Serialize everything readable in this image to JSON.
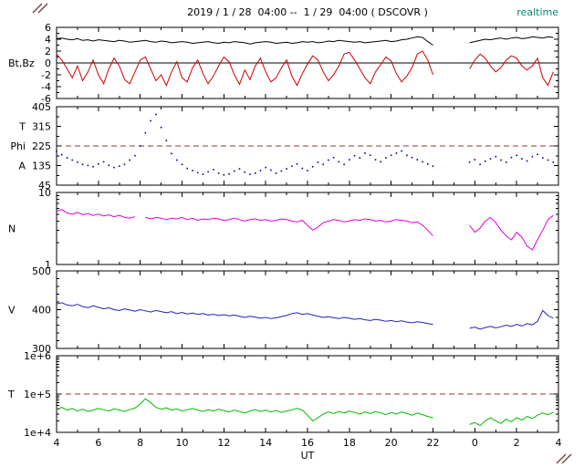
{
  "header": {
    "title": "2019 / 1 / 28  04:00 --  1 / 29  04:00 ( DSCOVR )",
    "realtime": "realtime",
    "realtime_color": "#008877"
  },
  "decorations": {
    "corner_marks_color": "#774444"
  },
  "chart_data": {
    "type": "line",
    "title": "2019 / 1 / 28  04:00 --  1 / 29  04:00 ( DSCOVR )",
    "xlabel": "UT",
    "x_start_hour": 4,
    "x_end_hour": 28,
    "t0": 4,
    "dt": 0.25,
    "x_ticks": [
      {
        "h": 4,
        "label": "4"
      },
      {
        "h": 6,
        "label": "6"
      },
      {
        "h": 8,
        "label": "8"
      },
      {
        "h": 10,
        "label": "10"
      },
      {
        "h": 12,
        "label": "12"
      },
      {
        "h": 14,
        "label": "14"
      },
      {
        "h": 16,
        "label": "16"
      },
      {
        "h": 18,
        "label": "18"
      },
      {
        "h": 20,
        "label": "20"
      },
      {
        "h": 22,
        "label": "22"
      },
      {
        "h": 24,
        "label": "0"
      },
      {
        "h": 26,
        "label": "2"
      },
      {
        "h": 28,
        "label": "4"
      }
    ],
    "panels": [
      {
        "name": "bt-bz",
        "label": "Bt,Bz",
        "label_at": 0,
        "scale": "linear",
        "ylim": [
          -6,
          6
        ],
        "yticks": [
          {
            "v": 6,
            "label": "6"
          },
          {
            "v": 4,
            "label": "4"
          },
          {
            "v": 2,
            "label": "2"
          },
          {
            "v": 0,
            "label": "0"
          },
          {
            "v": -2,
            "label": "-2"
          },
          {
            "v": -4,
            "label": "-4"
          },
          {
            "v": -6,
            "label": "-6"
          }
        ],
        "yminor": 1,
        "zero_line": true,
        "series": [
          {
            "name": "Bt",
            "color": "#000000",
            "type": "line",
            "values": [
              4.1,
              4.2,
              4.0,
              3.9,
              4.1,
              3.8,
              3.9,
              3.7,
              3.9,
              3.8,
              3.7,
              3.6,
              3.8,
              3.7,
              3.5,
              3.6,
              3.7,
              3.8,
              3.6,
              3.5,
              3.7,
              3.6,
              3.4,
              3.5,
              3.6,
              3.5,
              3.3,
              3.4,
              3.5,
              3.6,
              3.4,
              3.3,
              3.5,
              3.4,
              3.6,
              3.5,
              3.4,
              3.2,
              3.4,
              3.5,
              3.6,
              3.5,
              3.3,
              3.4,
              3.5,
              3.3,
              3.4,
              3.6,
              3.5,
              3.6,
              3.4,
              3.5,
              3.7,
              3.6,
              3.8,
              3.7,
              3.6,
              3.5,
              3.6,
              3.4,
              3.5,
              3.6,
              3.7,
              3.8,
              3.6,
              3.7,
              3.9,
              4.0,
              4.2,
              4.4,
              4.3,
              3.6,
              3.0,
              null,
              null,
              null,
              null,
              null,
              null,
              3.4,
              3.6,
              3.8,
              4.0,
              3.9,
              4.1,
              4.2,
              4.0,
              4.2,
              4.3,
              4.1,
              4.2,
              4.4,
              4.3,
              4.2,
              4.4,
              4.3
            ]
          },
          {
            "name": "Bz",
            "color": "#cc0000",
            "type": "line",
            "values": [
              1.5,
              0.5,
              -1.0,
              -2.5,
              -0.5,
              -3.0,
              -1.5,
              0.5,
              -2.0,
              -3.5,
              -1.0,
              0.8,
              -0.5,
              -2.8,
              -3.5,
              -1.5,
              0.5,
              1.0,
              -1.0,
              -3.0,
              -2.0,
              -3.8,
              -1.5,
              0.2,
              -2.5,
              -3.2,
              -0.8,
              0.5,
              -1.8,
              -3.5,
              -2.2,
              -0.5,
              1.0,
              0.2,
              -2.0,
              -3.6,
              -1.2,
              -2.8,
              -0.5,
              0.8,
              -1.5,
              -3.2,
              -2.5,
              -0.8,
              0.5,
              -2.2,
              -3.8,
              -1.8,
              -0.2,
              1.2,
              0.5,
              -1.5,
              -3.0,
              -2.0,
              -0.5,
              1.5,
              1.8,
              0.5,
              -1.0,
              -2.5,
              -3.5,
              -1.5,
              -0.3,
              1.0,
              0.3,
              -1.8,
              -3.2,
              -2.2,
              -0.8,
              1.5,
              2.0,
              0.5,
              -2.0,
              null,
              null,
              null,
              null,
              null,
              null,
              -1.0,
              0.5,
              1.5,
              0.8,
              -0.5,
              -1.5,
              -0.8,
              0.5,
              1.2,
              0.8,
              -0.5,
              -1.2,
              -0.5,
              0.8,
              -2.5,
              -3.8,
              -1.5
            ]
          }
        ]
      },
      {
        "name": "phi-angle",
        "scale": "linear",
        "ylim": [
          45,
          405
        ],
        "yticks": [
          {
            "v": 405,
            "label": "405"
          },
          {
            "v": 315,
            "label": "315"
          },
          {
            "v": 225,
            "label": "225"
          },
          {
            "v": 135,
            "label": "135"
          },
          {
            "v": 45,
            "label": "45"
          }
        ],
        "yminor": 45,
        "side_labels": [
          {
            "text": "T",
            "v": 315
          },
          {
            "text": "Phi",
            "v": 225
          },
          {
            "text": "A",
            "v": 135
          }
        ],
        "refline": {
          "value": 225,
          "color": "#993333",
          "style": "dashed"
        },
        "series": [
          {
            "name": "Phi",
            "color": "#000099",
            "type": "scatter",
            "values": [
              200,
              185,
              170,
              160,
              150,
              140,
              135,
              130,
              142,
              152,
              136,
              126,
              132,
              140,
              160,
              180,
              225,
              285,
              340,
              370,
              310,
              250,
              190,
              160,
              140,
              122,
              112,
              102,
              95,
              106,
              116,
              100,
              92,
              96,
              110,
              120,
              105,
              95,
              100,
              112,
              126,
              114,
              100,
              110,
              120,
              132,
              142,
              122,
              112,
              130,
              150,
              140,
              160,
              172,
              152,
              140,
              162,
              180,
              170,
              192,
              182,
              162,
              152,
              170,
              182,
              192,
              202,
              182,
              172,
              162,
              152,
              142,
              132,
              null,
              null,
              null,
              null,
              null,
              null,
              150,
              162,
              140,
              155,
              166,
              176,
              160,
              150,
              172,
              182,
              166,
              156,
              176,
              186,
              170,
              160,
              150
            ]
          }
        ]
      },
      {
        "name": "density",
        "label": "N",
        "scale": "log",
        "ylim": [
          1,
          10
        ],
        "yticks": [
          {
            "v": 10,
            "label": "10"
          },
          {
            "v": 1,
            "label": "1"
          }
        ],
        "yminor": "log",
        "series": [
          {
            "name": "N",
            "color": "#dd00dd",
            "type": "line",
            "values": [
              5.5,
              5.8,
              5.2,
              5.0,
              5.3,
              4.9,
              5.1,
              4.8,
              5.0,
              4.7,
              4.9,
              4.6,
              4.8,
              4.5,
              4.4,
              4.6,
              null,
              4.5,
              4.3,
              4.5,
              4.4,
              4.2,
              4.4,
              4.3,
              4.5,
              4.2,
              4.4,
              4.1,
              4.3,
              4.2,
              4.4,
              4.3,
              4.1,
              4.2,
              4.4,
              4.2,
              4.0,
              4.2,
              4.3,
              4.1,
              4.2,
              4.0,
              4.1,
              4.3,
              4.2,
              4.0,
              3.9,
              4.1,
              3.5,
              3.0,
              3.3,
              3.8,
              4.0,
              4.2,
              4.1,
              3.9,
              4.0,
              4.2,
              4.1,
              4.3,
              4.2,
              4.0,
              4.1,
              3.9,
              4.0,
              4.2,
              4.1,
              4.0,
              3.8,
              3.9,
              3.5,
              3.0,
              2.5,
              null,
              null,
              null,
              null,
              null,
              null,
              3.5,
              2.8,
              3.2,
              4.0,
              4.5,
              3.8,
              3.0,
              2.5,
              2.2,
              2.8,
              2.4,
              1.8,
              1.6,
              2.2,
              3.0,
              4.2,
              4.8
            ]
          }
        ]
      },
      {
        "name": "velocity",
        "label": "V",
        "label_at": 400,
        "scale": "linear",
        "ylim": [
          300,
          500
        ],
        "yticks": [
          {
            "v": 500,
            "label": "500"
          },
          {
            "v": 400,
            "label": "400"
          },
          {
            "v": 300,
            "label": "300"
          }
        ],
        "yminor": 20,
        "series": [
          {
            "name": "V",
            "color": "#2222bb",
            "type": "line",
            "values": [
              415,
              418,
              412,
              410,
              414,
              408,
              405,
              410,
              406,
              402,
              405,
              400,
              398,
              402,
              399,
              396,
              400,
              397,
              394,
              398,
              395,
              392,
              395,
              390,
              393,
              389,
              391,
              388,
              390,
              386,
              388,
              385,
              387,
              384,
              386,
              383,
              380,
              383,
              381,
              378,
              380,
              377,
              379,
              382,
              385,
              390,
              392,
              388,
              390,
              386,
              383,
              380,
              382,
              379,
              377,
              380,
              378,
              375,
              377,
              374,
              372,
              375,
              373,
              370,
              372,
              369,
              371,
              368,
              366,
              369,
              367,
              364,
              362,
              null,
              null,
              null,
              null,
              null,
              null,
              352,
              355,
              350,
              354,
              357,
              353,
              356,
              360,
              357,
              362,
              358,
              364,
              361,
              370,
              398,
              385,
              378
            ]
          }
        ]
      },
      {
        "name": "temperature",
        "label": "T",
        "label_at": 100000,
        "scale": "log",
        "ylim": [
          10000,
          1000000
        ],
        "yticks": [
          {
            "v": 1000000,
            "label": "1e+6"
          },
          {
            "v": 100000,
            "label": "1e+5"
          },
          {
            "v": 10000,
            "label": "1e+4"
          }
        ],
        "yminor": "log",
        "refline": {
          "value": 100000,
          "color": "#993333",
          "style": "dashed"
        },
        "series": [
          {
            "name": "T",
            "color": "#00bb00",
            "type": "line",
            "values": [
              40000,
              45000,
              38000,
              42000,
              36000,
              40000,
              35000,
              38000,
              42000,
              39000,
              36000,
              41000,
              38000,
              35000,
              39000,
              43000,
              55000,
              75000,
              60000,
              45000,
              40000,
              44000,
              38000,
              41000,
              36000,
              39000,
              42000,
              38000,
              35000,
              39000,
              36000,
              40000,
              37000,
              34000,
              38000,
              35000,
              32000,
              36000,
              39000,
              35000,
              38000,
              34000,
              37000,
              33000,
              36000,
              39000,
              42000,
              38000,
              28000,
              20000,
              24000,
              30000,
              34000,
              31000,
              35000,
              32000,
              36000,
              33000,
              30000,
              34000,
              31000,
              35000,
              32000,
              29000,
              33000,
              30000,
              34000,
              31000,
              28000,
              32000,
              29000,
              26000,
              24000,
              null,
              null,
              null,
              null,
              null,
              null,
              16000,
              18000,
              15000,
              20000,
              24000,
              20000,
              17000,
              22000,
              19000,
              24000,
              21000,
              26000,
              23000,
              28000,
              32000,
              29000,
              33000
            ]
          }
        ]
      }
    ]
  }
}
